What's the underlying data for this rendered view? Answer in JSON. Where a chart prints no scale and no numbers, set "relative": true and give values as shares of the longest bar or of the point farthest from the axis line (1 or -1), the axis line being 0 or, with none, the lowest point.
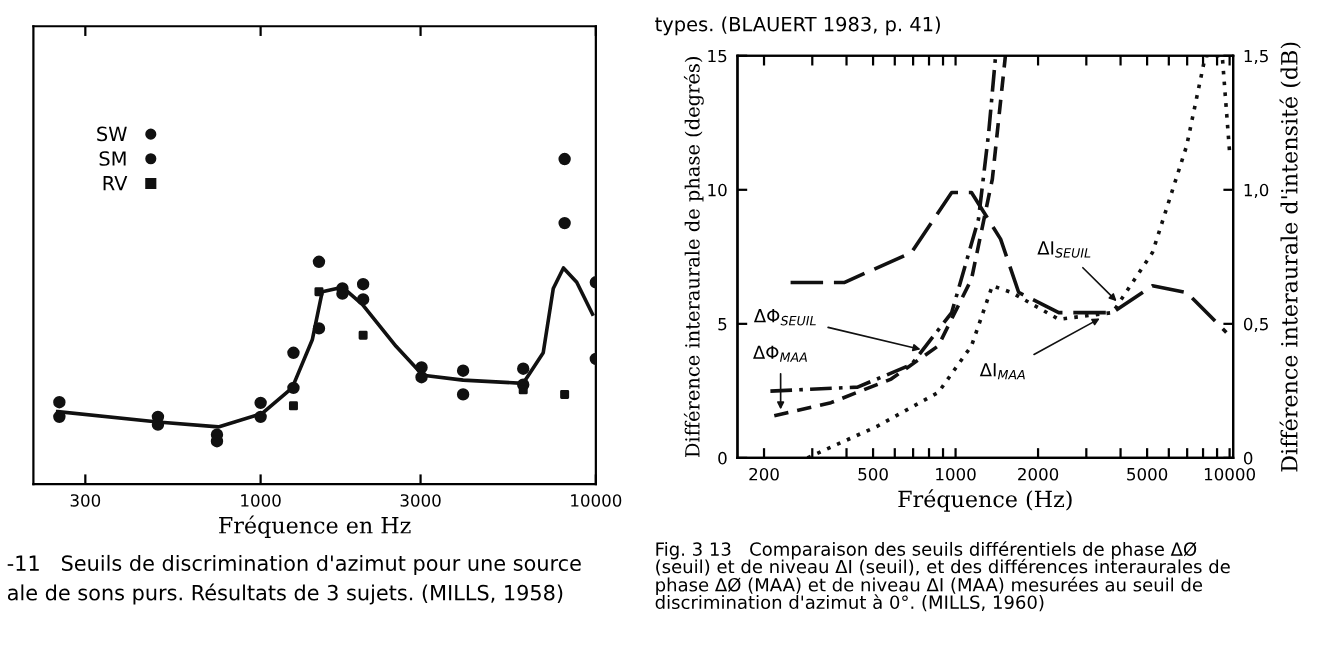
{
  "chart_data": [
    {
      "type": "line",
      "relative": true,
      "xlabel": "Fréquence en Hz",
      "log": "x",
      "xlim": [
        210,
        10000
      ],
      "xticks": [
        300,
        1000,
        3000,
        10000
      ],
      "legend": "top left",
      "grid": false,
      "annotations": [
        "-11   Seuils de discrimination d'azimut pour une source",
        "ale de sons purs. Résultats de 3 sujets. (MILLS, 1958)"
      ],
      "series": [
        {
          "type": "line",
          "color": "#111111",
          "marker": "none",
          "line_style": "solid",
          "x": [
            248,
            494,
            748,
            1009,
            1242,
            1426,
            1527,
            1754,
            2014,
            2535,
            3049,
            4018,
            6072,
            6966,
            7464,
            8004,
            8770,
            9772
          ],
          "values": [
            0.223,
            0.191,
            0.176,
            0.217,
            0.296,
            0.444,
            0.592,
            0.606,
            0.552,
            0.424,
            0.335,
            0.32,
            0.31,
            0.404,
            0.602,
            0.665,
            0.621,
            0.523
          ]
        },
        {
          "type": "scatter",
          "name": "SW",
          "color": "#111111",
          "marker": "circle",
          "x": [
            251,
            494,
            741,
            1000,
            1253,
            1493,
            1754,
            2022,
            3020,
            4018,
            6072,
            8070,
            10000
          ],
          "values": [
            0.252,
            0.207,
            0.152,
            0.25,
            0.404,
            0.684,
            0.602,
            0.615,
            0.359,
            0.349,
            0.355,
            1.0,
            0.621
          ]
        },
        {
          "type": "scatter",
          "name": "SM",
          "color": "#111111",
          "marker": "circle",
          "x": [
            251,
            494,
            741,
            1000,
            1253,
            1493,
            1754,
            2022,
            3020,
            4018,
            6072,
            8070,
            10000
          ],
          "values": [
            0.207,
            0.183,
            0.132,
            0.207,
            0.296,
            0.479,
            0.586,
            0.568,
            0.329,
            0.276,
            0.306,
            0.803,
            0.385
          ]
        },
        {
          "type": "scatter",
          "name": "RV",
          "color": "#111111",
          "marker": "square",
          "x": [
            1253,
            1493,
            2022,
            6072,
            8070
          ],
          "values": [
            0.241,
            0.592,
            0.458,
            0.29,
            0.276
          ]
        }
      ]
    },
    {
      "type": "line",
      "xlabel": "Fréquence (Hz)",
      "ylabel": "Différence interaurale de phase (degrés)",
      "y2label": "Différence interaurale d'intensité (dB)",
      "log": "x",
      "xlim": [
        160,
        10300
      ],
      "xticks": [
        200,
        {
          "value": 300,
          "label": null
        },
        {
          "value": 400,
          "label": null
        },
        500,
        {
          "value": 600,
          "label": null
        },
        {
          "value": 700,
          "label": null
        },
        {
          "value": 800,
          "label": null
        },
        {
          "value": 900,
          "label": null
        },
        1000,
        2000,
        {
          "value": 3000,
          "label": null
        },
        {
          "value": 4000,
          "label": null
        },
        5000,
        {
          "value": 6000,
          "label": null
        },
        {
          "value": 7000,
          "label": null
        },
        {
          "value": 8000,
          "label": null
        },
        {
          "value": 9000,
          "label": null
        },
        10000
      ],
      "ylim": [
        0,
        15
      ],
      "yticks": [
        0,
        5,
        10,
        15
      ],
      "y2lim": [
        0,
        1.5
      ],
      "y2ticks": [
        0,
        {
          "value": 0.5,
          "label": "0,5"
        },
        {
          "value": 1.0,
          "label": "1,0"
        },
        {
          "value": 1.5,
          "label": "1,5"
        }
      ],
      "grid": false,
      "annotations": [
        {
          "text": "ΔΦ$_{SEUIL}$",
          "x": 780,
          "y": 4.0
        },
        {
          "text": "ΔΦ$_{MAA}$",
          "x": 230,
          "y": 1.6
        },
        {
          "text": "ΔI$_{SEUIL}$",
          "x": 4000,
          "y": 5.7
        },
        {
          "text": "ΔI$_{MAA}$",
          "x": 3500,
          "y": 5.3
        },
        "types. (BLAUERT 1983, p. 41)",
        "Fig. 3 13   Comparaison des seuils différentiels de phase ΔØ\n(seuil) et de niveau ΔI (seuil), et des différences interaurales de\nphase ΔØ (MAA) et de niveau ΔI (MAA) mesurées au seuil de\ndiscrimination d'azimut à 0°. (MILLS, 1960)"
      ],
      "series": [
        {
          "color": "#111111",
          "line_style": "dashdot",
          "x": [
            211,
            296,
            439,
            690,
            968,
            1212,
            1320,
            1400
          ],
          "values": [
            2.49,
            2.56,
            2.64,
            3.48,
            5.42,
            8.9,
            12.1,
            15
          ]
        },
        {
          "color": "#111111",
          "line_style": "dashed",
          "x": [
            218,
            351,
            582,
            865,
            1143,
            1362,
            1520
          ],
          "values": [
            1.57,
            2.06,
            2.94,
            4.18,
            6.67,
            10.4,
            15
          ]
        },
        {
          "color": "#111111",
          "line_style": "longdash",
          "axis": "y2",
          "x": [
            250,
            392,
            690,
            968,
            1143,
            1460,
            1700,
            2380,
            3740,
            5230,
            6970,
            9730
          ],
          "values": [
            0.654,
            0.654,
            0.766,
            0.99,
            0.99,
            0.816,
            0.617,
            0.542,
            0.542,
            0.642,
            0.617,
            0.468
          ]
        },
        {
          "color": "#111111",
          "line_style": "dotted",
          "axis": "y2",
          "x": [
            288,
            520,
            865,
            1143,
            1362,
            1600,
            2380,
            3740,
            5230,
            6970,
            8160,
            9400,
            10000
          ],
          "values": [
            0,
            0.119,
            0.244,
            0.418,
            0.642,
            0.617,
            0.517,
            0.542,
            0.766,
            1.164,
            1.5,
            1.5,
            1.14
          ]
        }
      ]
    }
  ]
}
